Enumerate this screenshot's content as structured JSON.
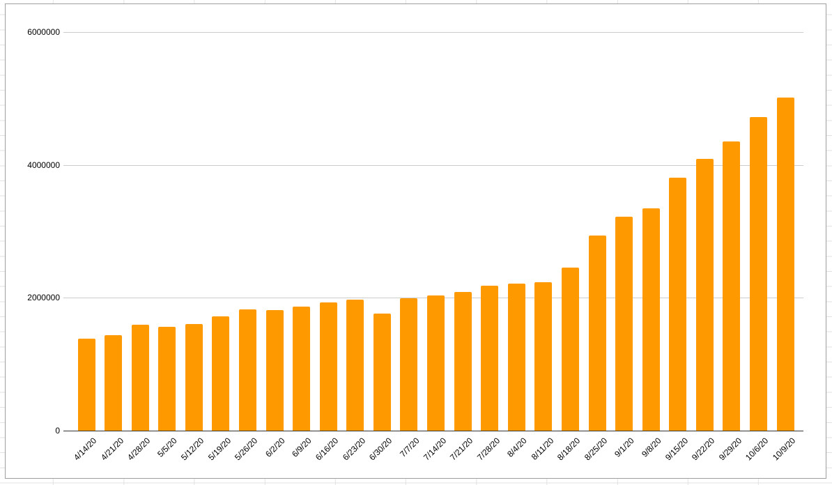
{
  "chart_data": {
    "type": "bar",
    "title": "",
    "xlabel": "",
    "ylabel": "",
    "categories": [
      "4/14/20",
      "4/21/20",
      "4/28/20",
      "5/5/20",
      "5/12/20",
      "5/19/20",
      "5/26/20",
      "6/2/20",
      "6/9/20",
      "6/16/20",
      "6/23/20",
      "6/30/20",
      "7/7/20",
      "7/14/20",
      "7/21/20",
      "7/28/20",
      "8/4/20",
      "8/11/20",
      "8/18/20",
      "8/25/20",
      "9/1/20",
      "9/8/20",
      "9/15/20",
      "9/22/20",
      "9/29/20",
      "10/6/20",
      "10/9/20"
    ],
    "values": [
      1380000,
      1440000,
      1590000,
      1560000,
      1600000,
      1720000,
      1830000,
      1810000,
      1870000,
      1930000,
      1970000,
      1760000,
      1990000,
      2040000,
      2090000,
      2180000,
      2210000,
      2230000,
      2450000,
      2940000,
      3220000,
      3350000,
      3810000,
      4090000,
      4350000,
      4720000,
      5010000
    ],
    "ylim": [
      0,
      6000000
    ],
    "yticks": [
      0,
      2000000,
      4000000,
      6000000
    ],
    "ytick_labels": [
      "0",
      "2000000",
      "4000000",
      "6000000"
    ],
    "grid": true,
    "legend": "none",
    "x_tick_rotation_deg": -45,
    "bar_color": "#ff9900",
    "plot_gridline_color": "#cccccc",
    "axis_line_color": "#333333",
    "tick_label_color": "#000000"
  },
  "spreadsheet": {
    "background_color": "#ffffff",
    "cell_gridline_color": "#e2e2e2",
    "chart_frame_border_color": "#9e9e9e"
  }
}
